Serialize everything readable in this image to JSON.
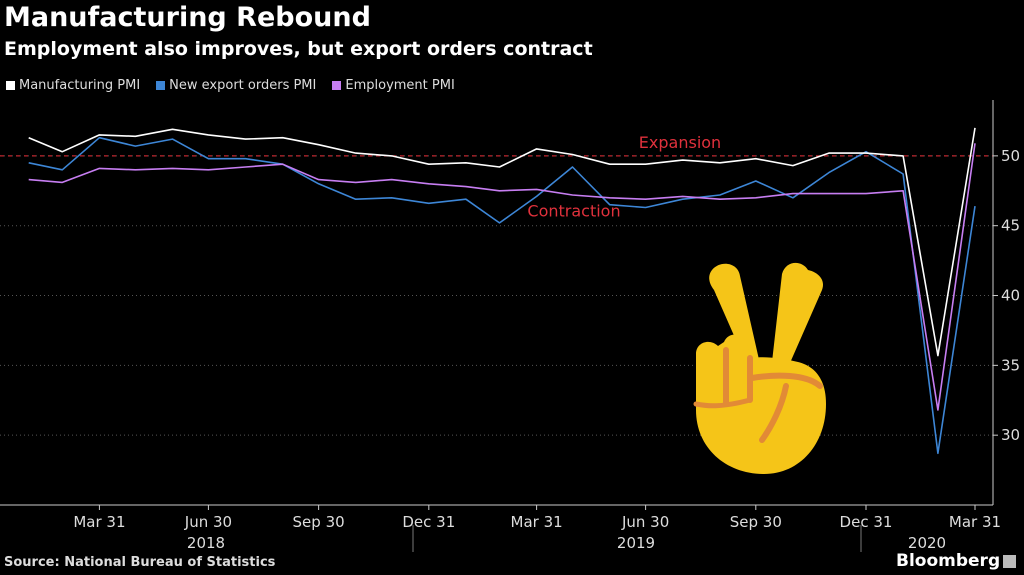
{
  "chart_data": {
    "type": "line",
    "title": "Manufacturing Rebound",
    "subtitle": "Employment also improves, but export orders contract",
    "source": "Source: National Bureau of Statistics",
    "brand": "Bloomberg",
    "ylim": [
      25,
      54
    ],
    "yticks": [
      30,
      35,
      40,
      45,
      50
    ],
    "grid": true,
    "legend_position": "top-left",
    "x": [
      "2018-01-31",
      "2018-02-28",
      "2018-03-31",
      "2018-04-30",
      "2018-05-31",
      "2018-06-30",
      "2018-07-31",
      "2018-08-31",
      "2018-09-30",
      "2018-10-31",
      "2018-11-30",
      "2018-12-31",
      "2019-01-31",
      "2019-02-28",
      "2019-03-31",
      "2019-04-30",
      "2019-05-31",
      "2019-06-30",
      "2019-07-31",
      "2019-08-31",
      "2019-09-30",
      "2019-10-31",
      "2019-11-30",
      "2019-12-31",
      "2020-01-31",
      "2020-02-29",
      "2020-03-31"
    ],
    "xtick_labels": [
      "Mar 31",
      "Jun 30",
      "Sep 30",
      "Dec 31",
      "Mar 31",
      "Jun 30",
      "Sep 30",
      "Dec 31",
      "Mar 31"
    ],
    "xtick_dates": [
      "2018-03-31",
      "2018-06-30",
      "2018-09-30",
      "2018-12-31",
      "2019-03-31",
      "2019-06-30",
      "2019-09-30",
      "2019-12-31",
      "2020-03-31"
    ],
    "years": [
      "2018",
      "2019",
      "2020"
    ],
    "series": [
      {
        "name": "Manufacturing PMI",
        "color": "#ffffff",
        "values": [
          51.3,
          50.3,
          51.5,
          51.4,
          51.9,
          51.5,
          51.2,
          51.3,
          50.8,
          50.2,
          50.0,
          49.4,
          49.5,
          49.2,
          50.5,
          50.1,
          49.4,
          49.4,
          49.7,
          49.5,
          49.8,
          49.3,
          50.2,
          50.2,
          50.0,
          35.7,
          52.0
        ]
      },
      {
        "name": "New export orders PMI",
        "color": "#3d86d6",
        "values": [
          49.5,
          49.0,
          51.3,
          50.7,
          51.2,
          49.8,
          49.8,
          49.4,
          48.0,
          46.9,
          47.0,
          46.6,
          46.9,
          45.2,
          47.1,
          49.2,
          46.5,
          46.3,
          46.9,
          47.2,
          48.2,
          47.0,
          48.8,
          50.3,
          48.7,
          28.7,
          46.4
        ]
      },
      {
        "name": "Employment PMI",
        "color": "#c77ef2",
        "values": [
          48.3,
          48.1,
          49.1,
          49.0,
          49.1,
          49.0,
          49.2,
          49.4,
          48.3,
          48.1,
          48.3,
          48.0,
          47.8,
          47.5,
          47.6,
          47.2,
          47.0,
          46.9,
          47.1,
          46.9,
          47.0,
          47.3,
          47.3,
          47.3,
          47.5,
          31.8,
          50.9
        ]
      }
    ],
    "annotations": [
      {
        "text": "Expansion",
        "value": 50
      },
      {
        "text": "Contraction",
        "value": 45.5
      }
    ]
  },
  "legend": [
    {
      "label": "Manufacturing PMI",
      "color": "#ffffff"
    },
    {
      "label": "New export orders PMI",
      "color": "#3d86d6"
    },
    {
      "label": "Employment PMI",
      "color": "#c77ef2"
    }
  ],
  "emoji": {
    "icon": "victory-hand-emoji",
    "color": "#f5c518",
    "outline": "#e28a36"
  }
}
